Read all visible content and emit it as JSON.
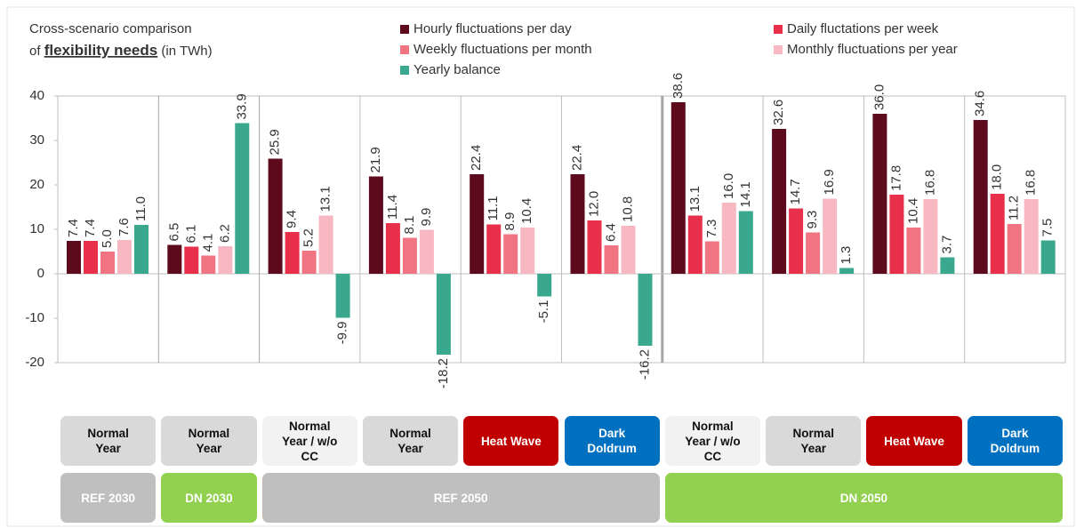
{
  "chart_data": {
    "type": "bar",
    "title": {
      "line1": "Cross-scenario comparison",
      "prefix": "of",
      "emphasis": "flexibility needs",
      "suffix": "(in TWh)"
    },
    "categories": [
      "Normal Year",
      "Normal Year",
      "Normal Year / w/o CC",
      "Normal Year",
      "Heat Wave",
      "Dark Doldrum",
      "Normal Year / w/o CC",
      "Normal Year",
      "Heat Wave",
      "Dark Doldrum"
    ],
    "category_colors": [
      "#d9d9d9",
      "#d9d9d9",
      "#f2f2f2",
      "#d9d9d9",
      "#c00000",
      "#0070c0",
      "#f2f2f2",
      "#d9d9d9",
      "#c00000",
      "#0070c0"
    ],
    "groups": [
      {
        "label": "REF 2030",
        "span": 1,
        "color": "#bfbfbf"
      },
      {
        "label": "DN 2030",
        "span": 1,
        "color": "#92d050"
      },
      {
        "label": "REF 2050",
        "span": 4,
        "color": "#bfbfbf"
      },
      {
        "label": "DN 2050",
        "span": 4,
        "color": "#92d050"
      }
    ],
    "series": [
      {
        "name": "Hourly fluctuations per day",
        "color": "#5c0a1c",
        "values": [
          7.4,
          6.5,
          25.9,
          21.9,
          22.4,
          22.4,
          38.6,
          32.6,
          36.0,
          34.6
        ],
        "value_labels": [
          "7.4",
          "6.5",
          "25.9",
          "21.9",
          "22.4",
          "22.4",
          "38.6",
          "32.6",
          "36.0",
          "34.6"
        ]
      },
      {
        "name": "Daily fluctations per week",
        "color": "#e8304a",
        "values": [
          7.4,
          6.1,
          9.4,
          11.4,
          11.1,
          12.0,
          13.1,
          14.7,
          17.8,
          18.0
        ],
        "value_labels": [
          "7.4",
          "6.1",
          "9.4",
          "11.4",
          "11.1",
          "12.0",
          "13.1",
          "14.7",
          "17.8",
          "18.0"
        ]
      },
      {
        "name": "Weekly fluctuations per month",
        "color": "#f07482",
        "values": [
          5.0,
          4.1,
          5.2,
          8.1,
          8.9,
          6.4,
          7.3,
          9.3,
          10.4,
          11.2
        ],
        "value_labels": [
          "5.0",
          "4.1",
          "5.2",
          "8.1",
          "8.9",
          "6.4",
          "7.3",
          "9.3",
          "10.4",
          "11.2"
        ]
      },
      {
        "name": "Monthly fluctuations per year",
        "color": "#f8b8c2",
        "values": [
          7.6,
          6.2,
          13.1,
          9.9,
          10.4,
          10.8,
          16.0,
          16.9,
          16.8,
          16.8
        ],
        "value_labels": [
          "7.6",
          "6.2",
          "13.1",
          "9.9",
          "10.4",
          "10.8",
          "16.0",
          "16.9",
          "16.8",
          "16.8"
        ]
      },
      {
        "name": "Yearly balance",
        "color": "#3aa88e",
        "values": [
          11.0,
          33.9,
          -9.9,
          -18.2,
          -5.1,
          -16.2,
          14.1,
          1.3,
          3.7,
          7.5
        ],
        "value_labels": [
          "11.0",
          "33.9",
          "-9.9",
          "-18.2",
          "-5.1",
          "-16.2",
          "14.1",
          "1.3",
          "3.7",
          "7.5"
        ]
      }
    ],
    "ylim": [
      -20,
      40
    ],
    "yticks": [
      -20,
      -10,
      0,
      10,
      20,
      30,
      40
    ]
  }
}
